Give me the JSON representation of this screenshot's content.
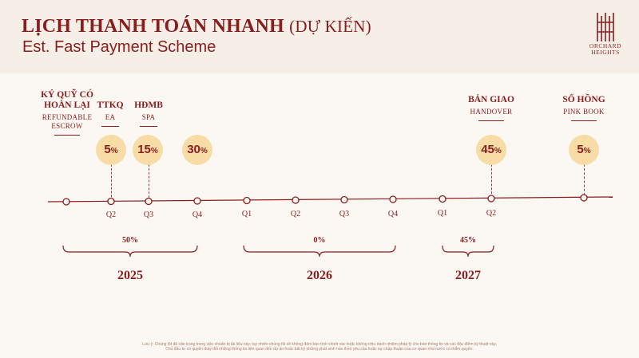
{
  "header": {
    "title_main": "LỊCH THANH TOÁN NHANH",
    "title_sub": "(DỰ KIẾN)",
    "subtitle": "Est. Fast Payment Scheme"
  },
  "logo": {
    "line1": "ORCHARD",
    "line2": "HEIGHTS"
  },
  "milestones": [
    {
      "vn1": "KÝ QUỸ CÓ",
      "vn2": "HOÀN LẠI",
      "en1": "REFUNDABLE",
      "en2": "ESCROW"
    },
    {
      "vn1": "TTKQ",
      "en1": "EA"
    },
    {
      "vn1": "HĐMB",
      "en1": "SPA"
    },
    {
      "vn1": "BẢN GIAO",
      "en1": "HANDOVER"
    },
    {
      "vn1": "SỔ HỒNG",
      "en1": "PINK BOOK"
    }
  ],
  "payments": [
    {
      "value": "5",
      "unit": "%"
    },
    {
      "value": "15",
      "unit": "%"
    },
    {
      "value": "30",
      "unit": "%"
    },
    {
      "value": "45",
      "unit": "%"
    },
    {
      "value": "5",
      "unit": "%"
    }
  ],
  "quarters": [
    "Q2",
    "Q3",
    "Q4",
    "Q1",
    "Q2",
    "Q3",
    "Q4",
    "Q1",
    "Q2"
  ],
  "years": [
    {
      "year": "2025",
      "percent": "50%"
    },
    {
      "year": "2026",
      "percent": "0%"
    },
    {
      "year": "2027",
      "percent": "45%"
    }
  ],
  "footnote": {
    "line1": "Lưu ý: Chúng tôi đã cẩn trọng trong việc chuẩn bị tài liệu này, tuy nhiên chúng tôi sẽ không đảm bảo tính chính xác hoặc không chịu trách nhiệm pháp lý cho bản thông tin và các đặc điểm kỹ thuật này.",
    "line2": "Chủ đầu tư có quyền thay đổi những thông tin liên quan đến dự án hoặc bất kỳ những phát sinh nào theo yêu cầu hoặc sự chấp thuận của cơ quan nhà nước có thẩm quyền."
  },
  "colors": {
    "accent": "#8b1c1c",
    "bubble": "#f8dca6",
    "background": "#fbf8f4"
  }
}
